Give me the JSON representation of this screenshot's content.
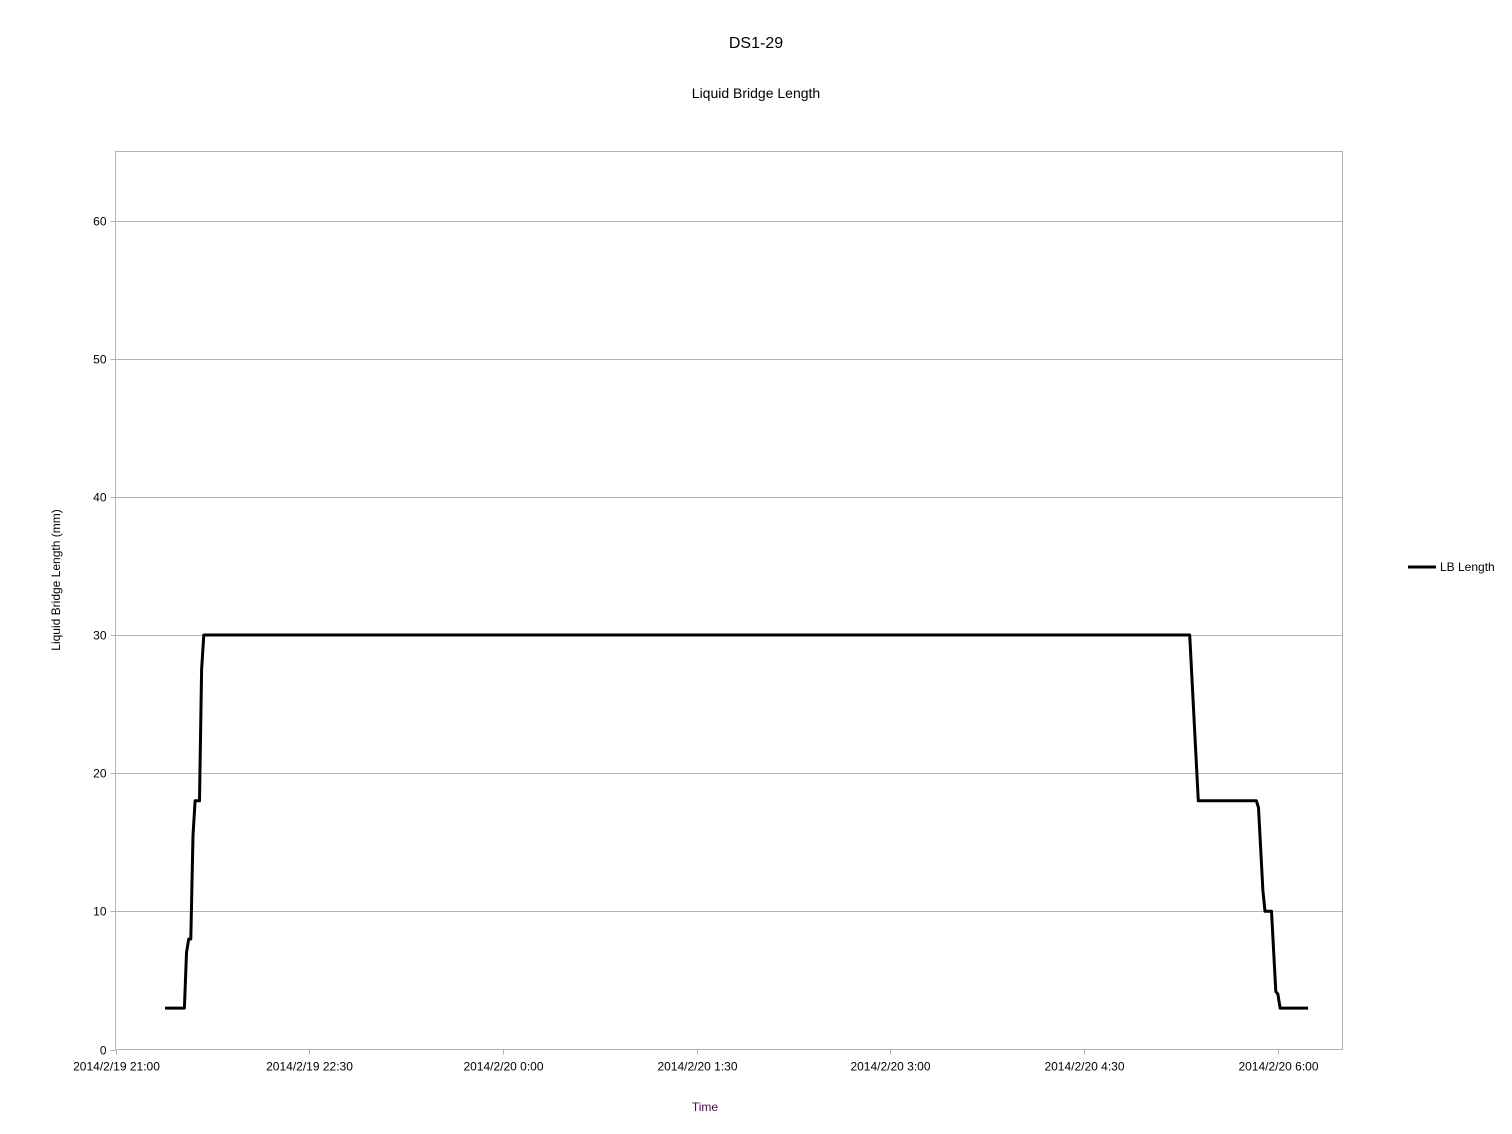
{
  "chart_data": {
    "type": "line",
    "title": "DS1-29",
    "subtitle": "Liquid Bridge Length",
    "xlabel": "Time",
    "ylabel": "Liquid Bridge Length (mm)",
    "xlim": [
      "2014-02-19T21:00",
      "2014-02-20T06:30"
    ],
    "ylim": [
      0,
      65
    ],
    "grid": {
      "y": true,
      "x": false
    },
    "legend_position": "right",
    "x_ticks": [
      {
        "t": "2014-02-19T21:00",
        "label": "2014/2/19 21:00"
      },
      {
        "t": "2014-02-19T22:30",
        "label": "2014/2/19 22:30"
      },
      {
        "t": "2014-02-20T00:00",
        "label": "2014/2/20 0:00"
      },
      {
        "t": "2014-02-20T01:30",
        "label": "2014/2/20 1:30"
      },
      {
        "t": "2014-02-20T03:00",
        "label": "2014/2/20 3:00"
      },
      {
        "t": "2014-02-20T04:30",
        "label": "2014/2/20 4:30"
      },
      {
        "t": "2014-02-20T06:00",
        "label": "2014/2/20 6:00"
      }
    ],
    "y_ticks": [
      0,
      10,
      20,
      30,
      40,
      50,
      60
    ],
    "series": [
      {
        "name": "LB Length",
        "color": "#000000",
        "points": [
          [
            "2014-02-19T21:23",
            3
          ],
          [
            "2014-02-19T21:32",
            3
          ],
          [
            "2014-02-19T21:33",
            7
          ],
          [
            "2014-02-19T21:34",
            8
          ],
          [
            "2014-02-19T21:35",
            8
          ],
          [
            "2014-02-19T21:36",
            15.5
          ],
          [
            "2014-02-19T21:37",
            18
          ],
          [
            "2014-02-19T21:39",
            18
          ],
          [
            "2014-02-19T21:40",
            27.5
          ],
          [
            "2014-02-19T21:41",
            30
          ],
          [
            "2014-02-20T05:19",
            30
          ],
          [
            "2014-02-20T05:23",
            18
          ],
          [
            "2014-02-20T05:50",
            18
          ],
          [
            "2014-02-20T05:51",
            17.5
          ],
          [
            "2014-02-20T05:53",
            11.5
          ],
          [
            "2014-02-20T05:54",
            10
          ],
          [
            "2014-02-20T05:57",
            10
          ],
          [
            "2014-02-20T05:59",
            4.2
          ],
          [
            "2014-02-20T06:00",
            4
          ],
          [
            "2014-02-20T06:01",
            3
          ],
          [
            "2014-02-20T06:14",
            3
          ]
        ]
      }
    ]
  }
}
